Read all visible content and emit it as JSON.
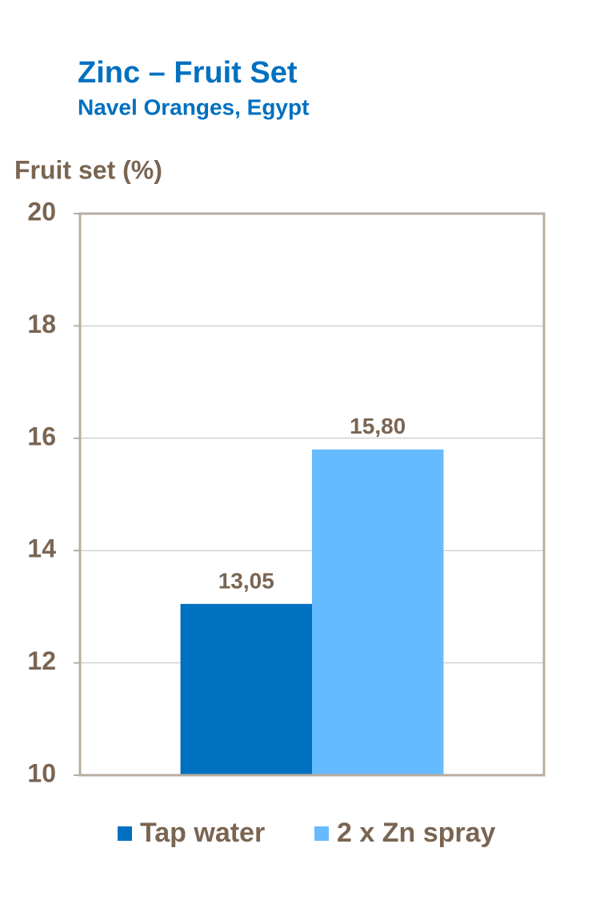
{
  "chart_data": {
    "type": "bar",
    "title": "Zinc – Fruit Set",
    "subtitle": "Navel Oranges, Egypt",
    "y_label": "Fruit set (%)",
    "categories": [
      null
    ],
    "series": [
      {
        "name": "Tap water",
        "color": "#0070c0",
        "values": [
          13.05
        ],
        "value_labels": [
          "13,05"
        ]
      },
      {
        "name": "2 x Zn spray",
        "color": "#66bbff",
        "values": [
          15.8
        ],
        "value_labels": [
          "15,80"
        ]
      }
    ],
    "ylim": [
      10,
      20
    ],
    "yticks": [
      10,
      12,
      14,
      16,
      18,
      20
    ],
    "grid": true
  }
}
